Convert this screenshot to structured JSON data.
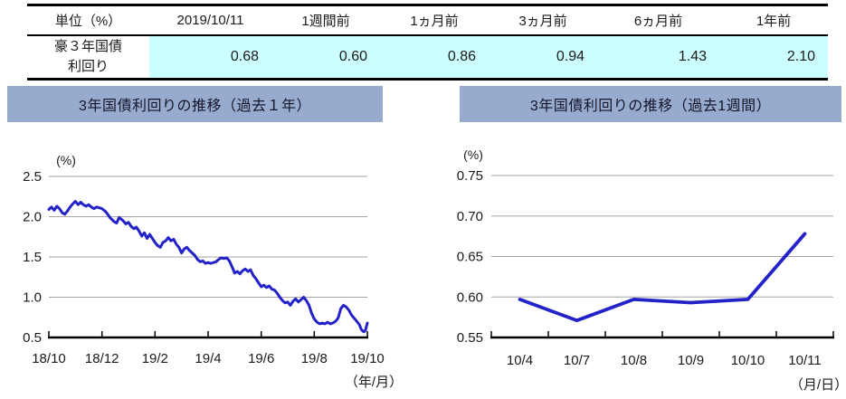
{
  "table": {
    "unit_header": "単位（%）",
    "columns": [
      "2019/10/11",
      "1週間前",
      "1ヵ月前",
      "3ヵ月前",
      "6ヵ月前",
      "1年前"
    ],
    "row": {
      "label_line1": "豪３年国債",
      "label_line2": "利回り",
      "values": [
        "0.68",
        "0.60",
        "0.86",
        "0.94",
        "1.43",
        "2.10"
      ]
    }
  },
  "sections": [
    {
      "title": "3年国債利回りの推移（過去１年）"
    },
    {
      "title": "3年国債利回りの推移（過去1週間）"
    }
  ],
  "colors": {
    "line": "#2321c8",
    "grid": "#a6a6a6",
    "axis": "#000000",
    "title_bar_bg": "#96abcd",
    "table_value_bg": "#ccffff"
  },
  "chart_data": [
    {
      "type": "line",
      "title": "3年国債利回りの推移（過去１年）",
      "ylabel": "(%)",
      "xlabel": "（年/月）",
      "x_unit": "months since 2018/10",
      "xlim": [
        0,
        12
      ],
      "ylim": [
        0.5,
        2.5
      ],
      "yticks": [
        0.5,
        1.0,
        1.5,
        2.0,
        2.5
      ],
      "ytick_labels": [
        "0.5",
        "1.0",
        "1.5",
        "2.0",
        "2.5"
      ],
      "xticks": [
        0,
        2,
        4,
        6,
        8,
        10,
        12
      ],
      "xtick_labels": [
        "18/10",
        "18/12",
        "19/2",
        "19/4",
        "19/6",
        "19/8",
        "19/10"
      ],
      "grid": true,
      "legend": false,
      "series": [
        {
          "name": "豪3年国債利回り",
          "x": [
            0,
            0.1,
            0.2,
            0.3,
            0.4,
            0.5,
            0.6,
            0.7,
            0.8,
            0.9,
            1.0,
            1.1,
            1.2,
            1.3,
            1.4,
            1.5,
            1.6,
            1.7,
            1.8,
            1.9,
            2.0,
            2.15,
            2.3,
            2.45,
            2.55,
            2.65,
            2.8,
            2.9,
            3.0,
            3.1,
            3.2,
            3.3,
            3.4,
            3.5,
            3.6,
            3.7,
            3.8,
            3.9,
            4.0,
            4.1,
            4.2,
            4.3,
            4.4,
            4.5,
            4.6,
            4.7,
            4.8,
            4.9,
            5.0,
            5.1,
            5.2,
            5.3,
            5.4,
            5.5,
            5.6,
            5.7,
            5.8,
            5.9,
            6.0,
            6.1,
            6.2,
            6.3,
            6.4,
            6.5,
            6.6,
            6.7,
            6.8,
            6.9,
            7.0,
            7.1,
            7.2,
            7.3,
            7.4,
            7.5,
            7.6,
            7.7,
            7.8,
            7.9,
            8.0,
            8.1,
            8.2,
            8.3,
            8.4,
            8.5,
            8.6,
            8.7,
            8.8,
            8.9,
            9.0,
            9.1,
            9.2,
            9.3,
            9.4,
            9.5,
            9.6,
            9.7,
            9.8,
            9.9,
            10.0,
            10.1,
            10.2,
            10.3,
            10.4,
            10.5,
            10.6,
            10.7,
            10.8,
            10.9,
            11.0,
            11.1,
            11.2,
            11.3,
            11.4,
            11.5,
            11.6,
            11.7,
            11.77,
            11.83,
            11.87,
            11.93,
            12.0
          ],
          "y": [
            2.09,
            2.12,
            2.08,
            2.13,
            2.1,
            2.05,
            2.03,
            2.07,
            2.12,
            2.16,
            2.19,
            2.15,
            2.18,
            2.15,
            2.13,
            2.15,
            2.12,
            2.1,
            2.12,
            2.11,
            2.1,
            2.06,
            1.99,
            1.94,
            1.92,
            1.99,
            1.95,
            1.91,
            1.93,
            1.88,
            1.85,
            1.87,
            1.82,
            1.76,
            1.8,
            1.73,
            1.78,
            1.73,
            1.68,
            1.64,
            1.62,
            1.68,
            1.7,
            1.74,
            1.7,
            1.72,
            1.66,
            1.62,
            1.55,
            1.6,
            1.62,
            1.58,
            1.55,
            1.52,
            1.47,
            1.44,
            1.45,
            1.42,
            1.43,
            1.42,
            1.43,
            1.44,
            1.47,
            1.49,
            1.48,
            1.49,
            1.45,
            1.38,
            1.3,
            1.32,
            1.29,
            1.33,
            1.35,
            1.32,
            1.34,
            1.27,
            1.23,
            1.18,
            1.13,
            1.15,
            1.12,
            1.14,
            1.1,
            1.09,
            1.05,
            1.0,
            0.96,
            0.93,
            0.94,
            0.9,
            0.95,
            0.98,
            0.94,
            0.97,
            1.0,
            0.96,
            0.9,
            0.8,
            0.73,
            0.69,
            0.67,
            0.68,
            0.67,
            0.69,
            0.67,
            0.68,
            0.7,
            0.74,
            0.86,
            0.9,
            0.88,
            0.84,
            0.78,
            0.74,
            0.7,
            0.66,
            0.6,
            0.58,
            0.57,
            0.59,
            0.68
          ]
        }
      ]
    },
    {
      "type": "line",
      "title": "3年国債利回りの推移（過去1週間）",
      "ylabel": "(%)",
      "xlabel": "（月/日）",
      "categories": [
        "10/4",
        "10/7",
        "10/8",
        "10/9",
        "10/10",
        "10/11"
      ],
      "values": [
        0.597,
        0.571,
        0.597,
        0.593,
        0.597,
        0.678
      ],
      "ylim": [
        0.55,
        0.75
      ],
      "yticks": [
        0.55,
        0.6,
        0.65,
        0.7,
        0.75
      ],
      "ytick_labels": [
        "0.55",
        "0.60",
        "0.65",
        "0.70",
        "0.75"
      ],
      "grid": true,
      "legend": false
    }
  ]
}
